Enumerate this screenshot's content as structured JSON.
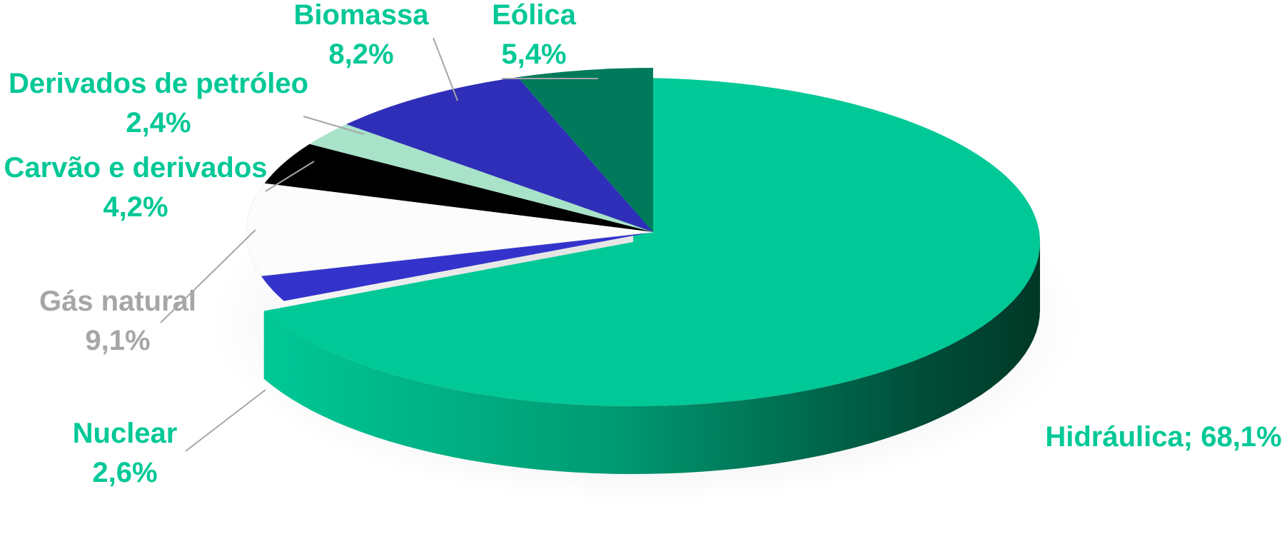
{
  "chart_data": {
    "type": "pie",
    "style": "3d-exploded",
    "categories": [
      "Hidráulica",
      "Nuclear",
      "Gás natural",
      "Carvão e derivados",
      "Derivados de petróleo",
      "Biomassa",
      "Eólica"
    ],
    "values": [
      68.1,
      2.6,
      9.1,
      4.2,
      2.4,
      8.2,
      5.4
    ],
    "unit": "%",
    "slices": [
      {
        "name": "Hidráulica",
        "value": 68.1,
        "name_text": "Hidráulica;",
        "value_text": "68,1%",
        "color": "#00C896",
        "label_color": "#00C896"
      },
      {
        "name": "Nuclear",
        "value": 2.6,
        "name_text": "Nuclear",
        "value_text": "2,6%",
        "color": "#3333CC",
        "label_color": "#00C896"
      },
      {
        "name": "Gás natural",
        "value": 9.1,
        "name_text": "Gás natural",
        "value_text": "9,1%",
        "color": "#FCFCFC",
        "label_color": "#A6A6A6"
      },
      {
        "name": "Carvão e derivados",
        "value": 4.2,
        "name_text": "Carvão e derivados",
        "value_text": "4,2%",
        "color": "#000000",
        "label_color": "#00C896"
      },
      {
        "name": "Derivados de petróleo",
        "value": 2.4,
        "name_text": "Derivados de petróleo",
        "value_text": "2,4%",
        "color": "#A8E2C8",
        "label_color": "#00C896"
      },
      {
        "name": "Biomassa",
        "value": 8.2,
        "name_text": "Biomassa",
        "value_text": "8,2%",
        "color": "#2E2EB8",
        "label_color": "#00C896"
      },
      {
        "name": "Eólica",
        "value": 5.4,
        "name_text": "Eólica",
        "value_text": "5,4%",
        "color": "#007A5A",
        "label_color": "#00C896"
      }
    ],
    "leader_line_color": "#A6A6A6",
    "title": "",
    "legend": "none"
  }
}
